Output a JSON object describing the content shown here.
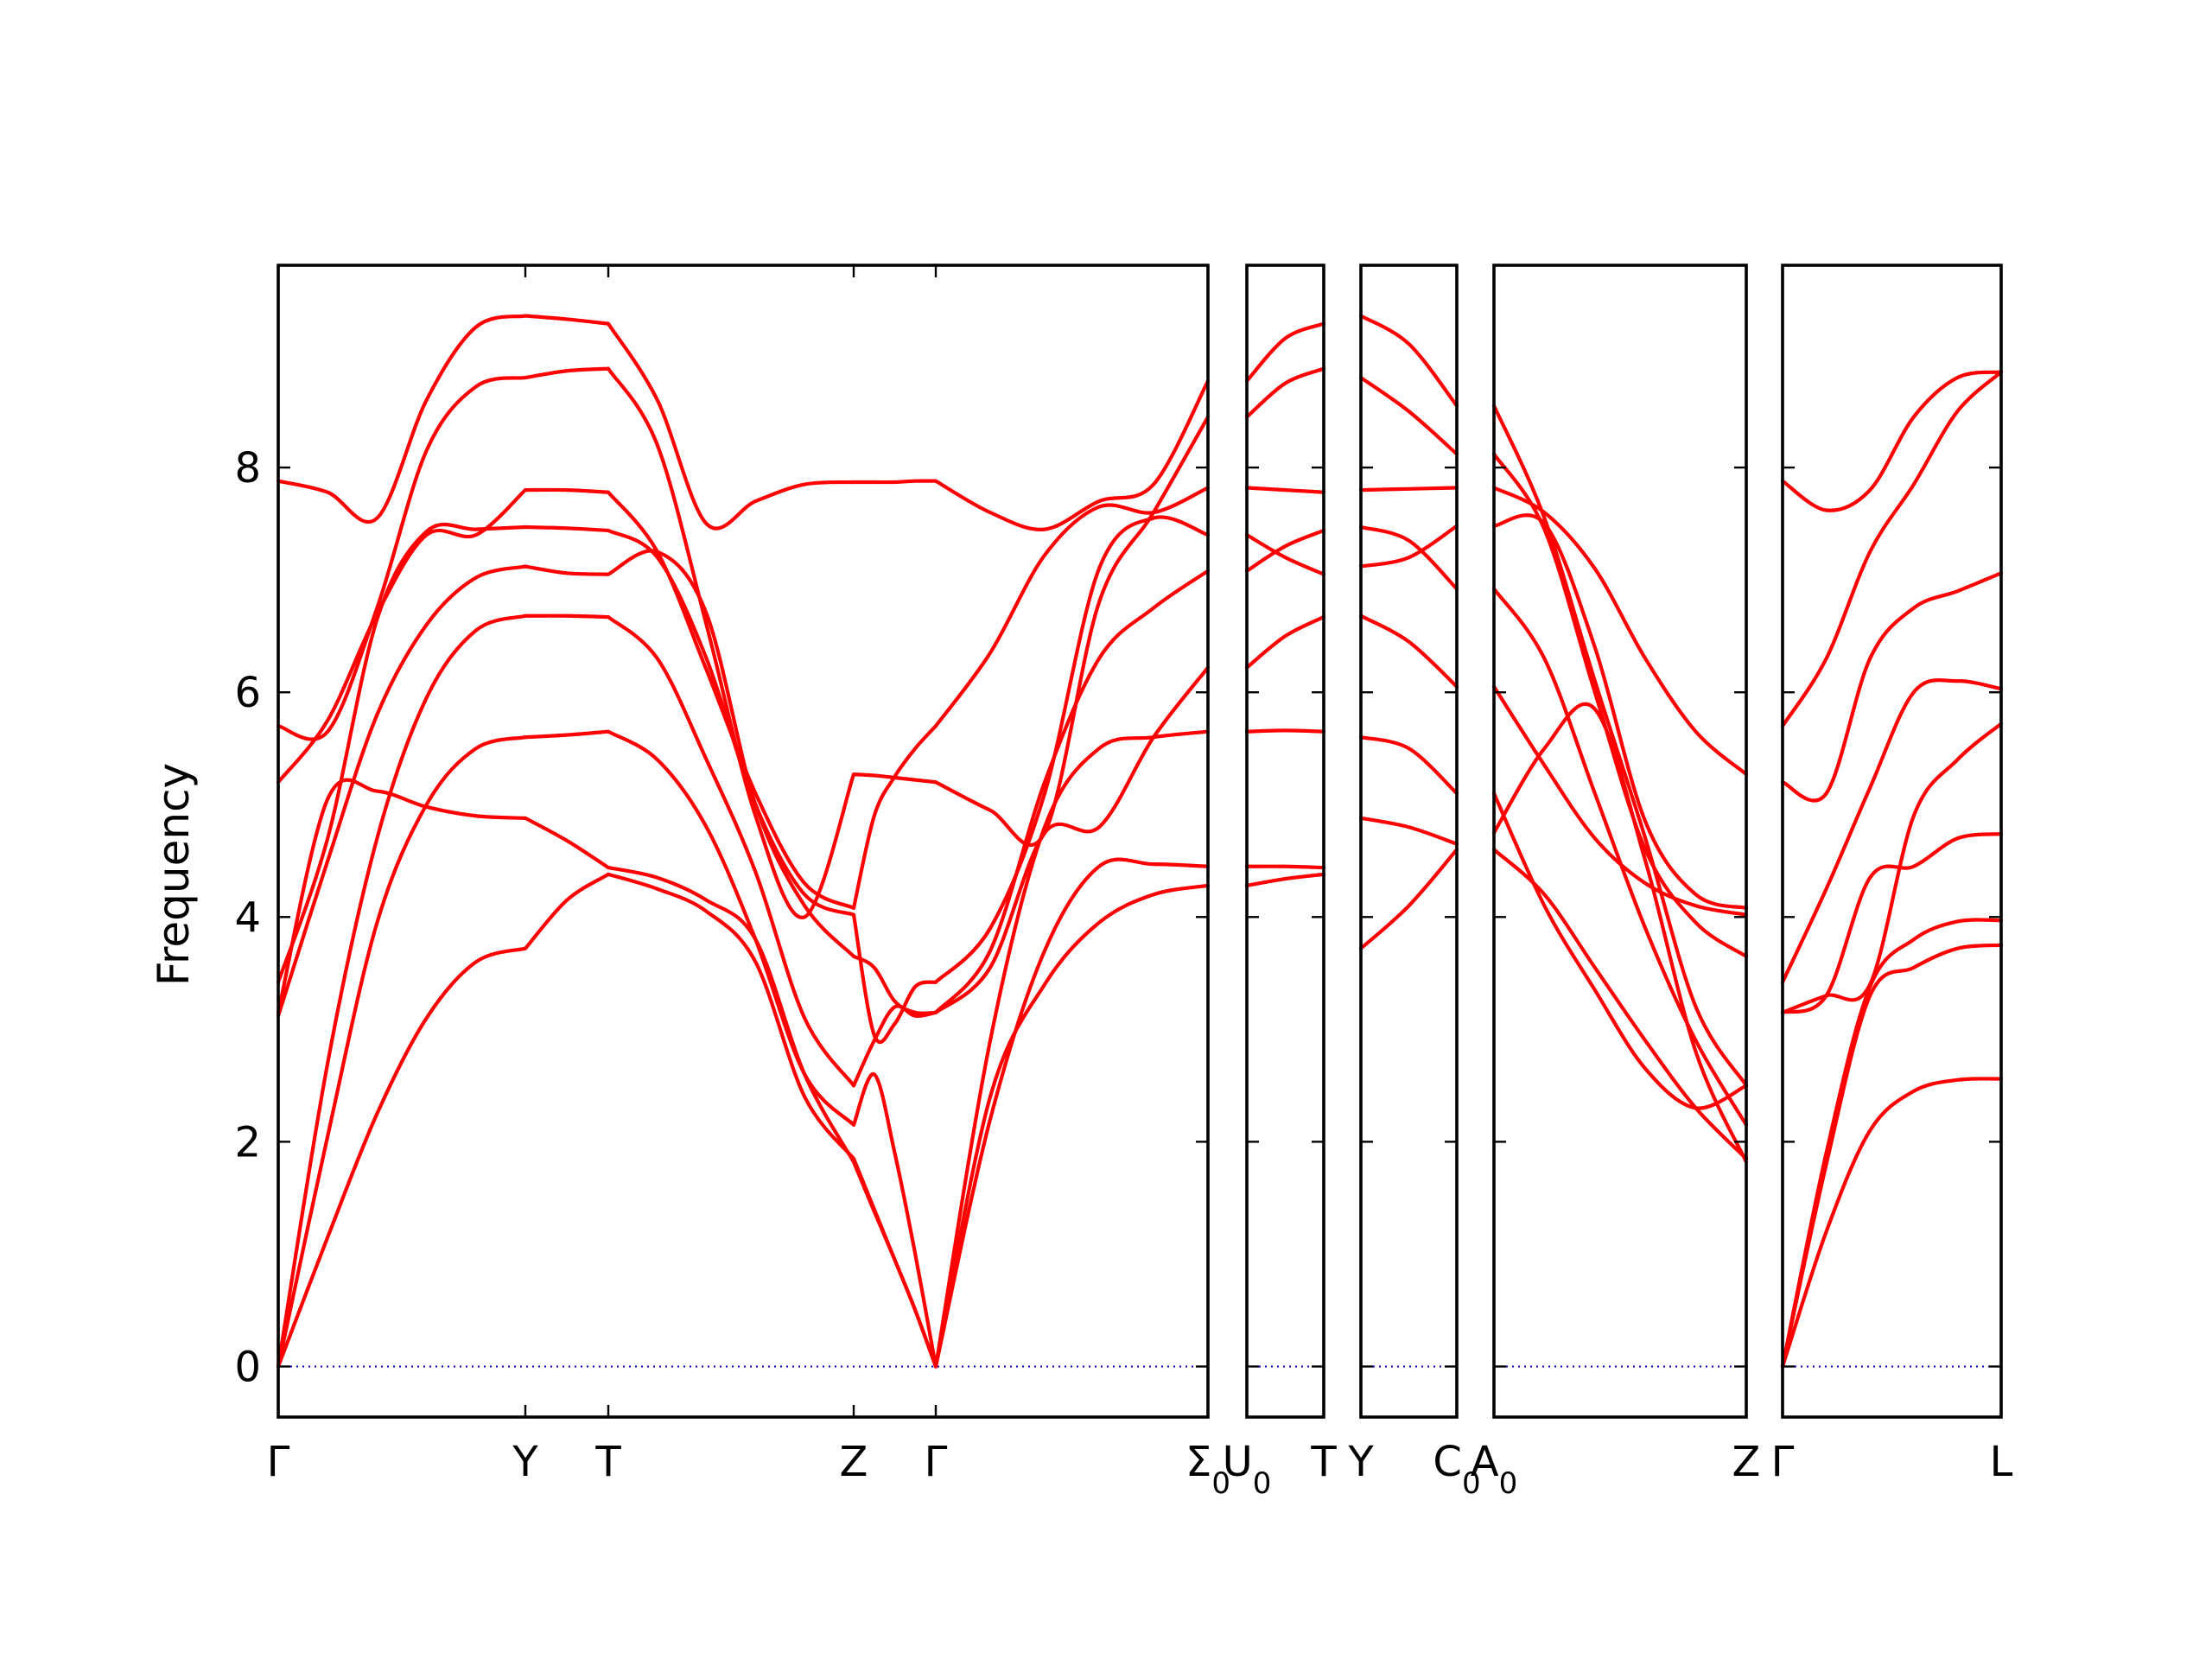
{
  "chart_data": {
    "type": "line",
    "ylabel": "Frequency",
    "ylim": [
      -0.45,
      9.8
    ],
    "yticks": [
      0,
      2,
      4,
      6,
      8
    ],
    "grid": false,
    "band_color": "#ff0000",
    "zero_line_color": "#0000cc",
    "panels": [
      {
        "segments": [
          {
            "from": "Γ",
            "to": "Y",
            "x": [
              0,
              0.2,
              0.4,
              0.6,
              0.8,
              1.0
            ],
            "bands": [
              [
                0.0,
                1.15,
                2.25,
                3.1,
                3.6,
                3.72
              ],
              [
                0.0,
                2.05,
                3.95,
                5.0,
                5.5,
                5.6
              ],
              [
                0.0,
                2.7,
                4.7,
                5.95,
                6.55,
                6.68
              ],
              [
                3.12,
                4.5,
                5.8,
                6.6,
                7.02,
                7.12
              ],
              [
                3.15,
                5.05,
                5.12,
                4.98,
                4.9,
                4.88
              ],
              [
                3.42,
                4.7,
                6.65,
                7.43,
                7.45,
                7.47
              ],
              [
                5.2,
                5.75,
                6.7,
                7.4,
                7.4,
                7.8
              ],
              [
                5.7,
                5.65,
                6.75,
                8.15,
                8.72,
                8.8
              ],
              [
                7.88,
                7.78,
                7.55,
                8.6,
                9.25,
                9.35
              ]
            ]
          },
          {
            "from": "Y",
            "to": "T",
            "x": [
              0,
              0.5,
              1.0
            ],
            "bands": [
              [
                3.72,
                4.15,
                4.38
              ],
              [
                5.6,
                5.62,
                5.65
              ],
              [
                6.68,
                6.68,
                6.67
              ],
              [
                7.12,
                7.06,
                7.05
              ],
              [
                4.88,
                4.68,
                4.44
              ],
              [
                7.47,
                7.46,
                7.44
              ],
              [
                7.8,
                7.8,
                7.78
              ],
              [
                8.8,
                8.86,
                8.88
              ],
              [
                9.35,
                9.32,
                9.28
              ]
            ]
          },
          {
            "from": "T",
            "to": "Z",
            "x": [
              0,
              0.2,
              0.4,
              0.6,
              0.8,
              1.0
            ],
            "bands": [
              [
                4.38,
                4.25,
                4.05,
                3.6,
                2.4,
                1.85
              ],
              [
                4.44,
                4.35,
                4.15,
                3.8,
                2.6,
                1.82
              ],
              [
                5.65,
                5.4,
                4.8,
                3.8,
                2.6,
                2.15
              ],
              [
                6.67,
                6.3,
                5.4,
                4.4,
                3.1,
                2.5
              ],
              [
                7.05,
                7.25,
                6.7,
                5.0,
                4.1,
                3.65
              ],
              [
                7.44,
                7.2,
                6.3,
                5.0,
                4.2,
                4.02
              ],
              [
                7.78,
                7.25,
                6.2,
                5.1,
                4.3,
                4.08
              ],
              [
                8.88,
                8.2,
                6.6,
                4.9,
                4.0,
                5.27
              ],
              [
                9.28,
                8.6,
                7.5,
                7.7,
                7.85,
                7.87
              ]
            ]
          },
          {
            "from": "Z",
            "to": "Γ",
            "x": [
              0,
              0.25,
              0.5,
              0.75,
              1.0
            ],
            "bands": [
              [
                1.85,
                1.4,
                0.95,
                0.5,
                0.0
              ],
              [
                1.82,
                1.38,
                0.95,
                0.5,
                0.0
              ],
              [
                2.15,
                2.6,
                1.9,
                1.0,
                0.0
              ],
              [
                2.5,
                2.9,
                3.2,
                3.12,
                3.15
              ],
              [
                3.65,
                3.55,
                3.25,
                3.15,
                3.15
              ],
              [
                4.02,
                2.95,
                3.05,
                3.38,
                3.42
              ],
              [
                4.08,
                4.9,
                5.25,
                5.5,
                5.7
              ],
              [
                5.27,
                5.26,
                5.24,
                5.22,
                5.2
              ],
              [
                7.87,
                7.87,
                7.87,
                7.88,
                7.88
              ]
            ]
          },
          {
            "from": "Γ",
            "to": "Σ0",
            "x": [
              0,
              0.2,
              0.4,
              0.6,
              0.8,
              1.0
            ],
            "bands": [
              [
                0.0,
                2.4,
                3.4,
                3.95,
                4.2,
                4.28
              ],
              [
                0.0,
                2.2,
                3.7,
                4.45,
                4.47,
                4.45
              ],
              [
                0.0,
                2.9,
                4.8,
                5.5,
                5.6,
                5.65
              ],
              [
                3.15,
                3.55,
                4.75,
                4.8,
                5.6,
                6.22
              ],
              [
                3.15,
                3.7,
                5.2,
                6.3,
                6.75,
                7.08
              ],
              [
                3.42,
                3.9,
                5.1,
                7.1,
                7.55,
                7.4
              ],
              [
                5.7,
                6.35,
                7.22,
                7.65,
                7.6,
                7.82
              ],
              [
                5.2,
                4.95,
                4.75,
                6.8,
                7.6,
                8.45
              ],
              [
                7.88,
                7.6,
                7.45,
                7.7,
                7.85,
                8.77
              ]
            ]
          }
        ]
      },
      {
        "segments": [
          {
            "from": "U0",
            "to": "T",
            "x": [
              0,
              0.5,
              1.0
            ],
            "bands": [
              [
                4.28,
                4.34,
                4.38
              ],
              [
                4.45,
                4.45,
                4.44
              ],
              [
                5.65,
                5.66,
                5.65
              ],
              [
                6.22,
                6.5,
                6.67
              ],
              [
                7.08,
                7.3,
                7.44
              ],
              [
                7.4,
                7.2,
                7.05
              ],
              [
                7.82,
                7.8,
                7.78
              ],
              [
                8.45,
                8.75,
                8.88
              ],
              [
                8.77,
                9.15,
                9.28
              ]
            ]
          }
        ]
      },
      {
        "segments": [
          {
            "from": "Y",
            "to": "C0",
            "x": [
              0,
              0.5,
              1.0
            ],
            "bands": [
              [
                3.72,
                4.1,
                4.6
              ],
              [
                4.88,
                4.8,
                4.65
              ],
              [
                5.6,
                5.5,
                5.1
              ],
              [
                6.68,
                6.45,
                6.05
              ],
              [
                7.12,
                7.2,
                7.48
              ],
              [
                7.47,
                7.35,
                6.92
              ],
              [
                7.8,
                7.81,
                7.82
              ],
              [
                8.8,
                8.5,
                8.12
              ],
              [
                9.35,
                9.1,
                8.55
              ]
            ]
          }
        ]
      },
      {
        "segments": [
          {
            "from": "A0",
            "to": "Z",
            "x": [
              0,
              0.2,
              0.4,
              0.6,
              0.8,
              1.0
            ],
            "bands": [
              [
                4.6,
                4.2,
                3.55,
                2.9,
                2.3,
                1.85
              ],
              [
                4.75,
                5.5,
                5.85,
                4.5,
                2.8,
                1.82
              ],
              [
                5.1,
                4.1,
                3.35,
                2.65,
                2.3,
                2.5
              ],
              [
                6.05,
                5.35,
                4.7,
                4.3,
                4.1,
                4.02
              ],
              [
                6.92,
                6.3,
                5.1,
                3.9,
                2.9,
                2.15
              ],
              [
                7.48,
                7.5,
                6.4,
                4.85,
                4.2,
                4.08
              ],
              [
                7.82,
                7.6,
                7.1,
                6.3,
                5.65,
                5.27
              ],
              [
                8.12,
                7.45,
                6.0,
                4.6,
                3.95,
                3.65
              ],
              [
                8.55,
                7.55,
                6.1,
                4.7,
                3.2,
                2.5
              ]
            ]
          }
        ]
      },
      {
        "segments": [
          {
            "from": "Γ",
            "to": "L",
            "x": [
              0,
              0.2,
              0.4,
              0.6,
              0.8,
              1.0
            ],
            "bands": [
              [
                0.0,
                1.2,
                2.1,
                2.45,
                2.55,
                2.56
              ],
              [
                0.0,
                1.8,
                3.3,
                3.55,
                3.72,
                3.75
              ],
              [
                0.0,
                1.9,
                3.38,
                3.8,
                3.96,
                3.97
              ],
              [
                3.15,
                3.3,
                4.35,
                4.45,
                4.7,
                4.74
              ],
              [
                3.15,
                3.3,
                3.4,
                4.9,
                5.4,
                5.72
              ],
              [
                3.42,
                4.25,
                5.15,
                6.0,
                6.1,
                6.03
              ],
              [
                5.2,
                5.1,
                6.3,
                6.75,
                6.9,
                7.06
              ],
              [
                5.7,
                6.3,
                7.25,
                7.85,
                8.5,
                8.85
              ],
              [
                7.88,
                7.62,
                7.8,
                8.45,
                8.8,
                8.85
              ]
            ]
          }
        ]
      }
    ],
    "xtick_labels": [
      {
        "text": "Γ"
      },
      {
        "text": "Y"
      },
      {
        "text": "T"
      },
      {
        "text": "Z"
      },
      {
        "text": "Γ"
      },
      {
        "text": "Σ",
        "sub": "0"
      },
      {
        "text": "U",
        "sub": "0"
      },
      {
        "text": "T"
      },
      {
        "text": "Y"
      },
      {
        "text": "C",
        "sub": "0"
      },
      {
        "text": "A",
        "sub": "0"
      },
      {
        "text": "Z"
      },
      {
        "text": "Γ"
      },
      {
        "text": "L"
      }
    ]
  }
}
